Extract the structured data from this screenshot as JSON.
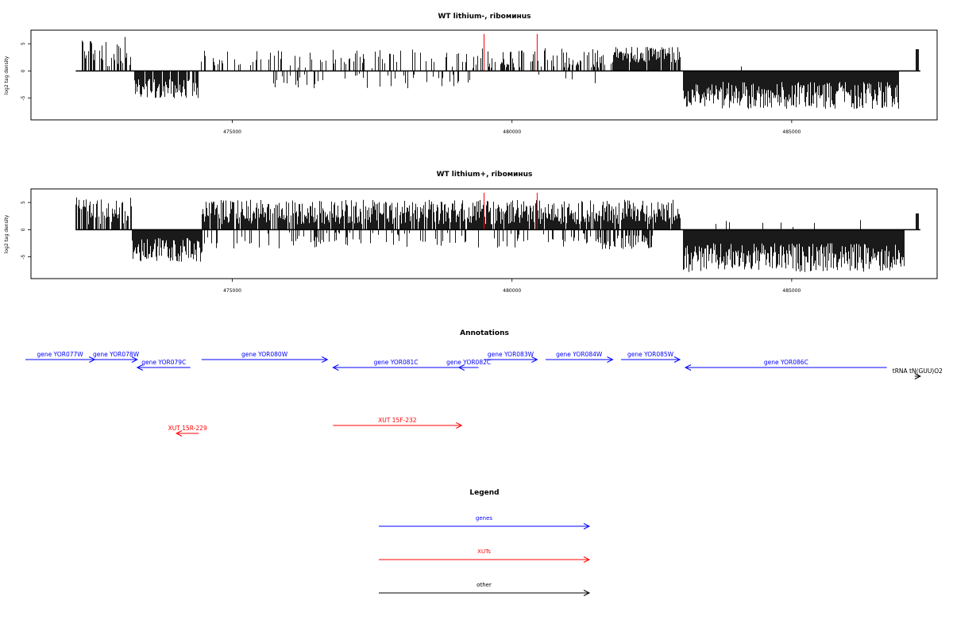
{
  "chart_data": [
    {
      "type": "bar",
      "title": "WT lithium-, riboминus",
      "ylabel": "log2 tag density",
      "xlim": [
        471400,
        487600
      ],
      "ylim": [
        -9,
        7.5
      ],
      "x_ticks": [
        475000,
        480000,
        485000
      ],
      "x_tick_labels": [
        "475000",
        "480000",
        "485000"
      ],
      "y_ticks": [
        5,
        0,
        -5
      ],
      "y_tick_labels": [
        "5",
        "0",
        "-5"
      ],
      "baseline": [
        472200,
        487300
      ],
      "bar_color": "#000000",
      "highlight_color": "#ff0000",
      "highlights": [
        {
          "x": 479500,
          "value": 6.8
        },
        {
          "x": 480450,
          "value": 6.8
        }
      ],
      "regions": [
        {
          "from": 472300,
          "to": 473200,
          "sign": 1,
          "lo": 0.8,
          "hi": 6.5,
          "density": 0.5
        },
        {
          "from": 473250,
          "to": 474400,
          "sign": -1,
          "lo": 1.5,
          "hi": 5.0,
          "density": 0.85
        },
        {
          "from": 474400,
          "to": 479300,
          "sign": 1,
          "lo": 0.5,
          "hi": 4.0,
          "density": 0.22
        },
        {
          "from": 475500,
          "to": 479300,
          "sign": -1,
          "lo": 0.5,
          "hi": 3.2,
          "density": 0.15
        },
        {
          "from": 479300,
          "to": 481800,
          "sign": 1,
          "lo": 0.5,
          "hi": 4.2,
          "density": 0.4
        },
        {
          "from": 480300,
          "to": 481500,
          "sign": -1,
          "lo": 0.3,
          "hi": 2.5,
          "density": 0.05
        },
        {
          "from": 481800,
          "to": 483000,
          "sign": 1,
          "lo": 1.5,
          "hi": 4.5,
          "density": 0.95
        },
        {
          "from": 483050,
          "to": 486900,
          "sign": -1,
          "lo": 2.0,
          "hi": 7.0,
          "density": 1.0
        },
        {
          "from": 483300,
          "to": 486000,
          "sign": 1,
          "lo": 0.3,
          "hi": 1.0,
          "density": 0.01
        },
        {
          "from": 487220,
          "to": 487260,
          "sign": 1,
          "lo": 4.0,
          "hi": 4.0,
          "density": 1.0
        }
      ]
    },
    {
      "type": "bar",
      "title": "WT lithium+, riboминus",
      "ylabel": "log2 tag density",
      "xlim": [
        471400,
        487600
      ],
      "ylim": [
        -9,
        7.5
      ],
      "x_ticks": [
        475000,
        480000,
        485000
      ],
      "x_tick_labels": [
        "475000",
        "480000",
        "485000"
      ],
      "y_ticks": [
        5,
        0,
        -5
      ],
      "y_tick_labels": [
        "5",
        "0",
        "-5"
      ],
      "baseline": [
        472200,
        487300
      ],
      "bar_color": "#000000",
      "highlight_color": "#ff0000",
      "highlights": [
        {
          "x": 479500,
          "value": 6.8
        },
        {
          "x": 480450,
          "value": 6.8
        }
      ],
      "regions": [
        {
          "from": 472200,
          "to": 473200,
          "sign": 1,
          "lo": 0.8,
          "hi": 6.0,
          "density": 0.7
        },
        {
          "from": 473200,
          "to": 474450,
          "sign": -1,
          "lo": 1.5,
          "hi": 6.0,
          "density": 1.0
        },
        {
          "from": 474450,
          "to": 483000,
          "sign": 1,
          "lo": 1.0,
          "hi": 5.5,
          "density": 0.9
        },
        {
          "from": 474450,
          "to": 481500,
          "sign": -1,
          "lo": 0.5,
          "hi": 3.5,
          "density": 0.2
        },
        {
          "from": 481500,
          "to": 482500,
          "sign": -1,
          "lo": 1.0,
          "hi": 3.8,
          "density": 0.6
        },
        {
          "from": 483050,
          "to": 487000,
          "sign": -1,
          "lo": 2.5,
          "hi": 7.8,
          "density": 1.0
        },
        {
          "from": 483500,
          "to": 486500,
          "sign": 1,
          "lo": 0.3,
          "hi": 1.8,
          "density": 0.03
        },
        {
          "from": 487220,
          "to": 487260,
          "sign": 1,
          "lo": 3.0,
          "hi": 3.0,
          "density": 1.0
        }
      ]
    }
  ],
  "annotations": {
    "title": "Annotations",
    "colors": {
      "gene": "#0000ff",
      "xut": "#ff0000",
      "other": "#000000"
    },
    "features": [
      {
        "label": "gene YOR077W",
        "kind": "gene",
        "start": 471300,
        "end": 472540,
        "strand": "+",
        "row": 0
      },
      {
        "label": "gene YOR078W",
        "kind": "gene",
        "start": 472540,
        "end": 473300,
        "strand": "+",
        "row": 0
      },
      {
        "label": "gene YOR079C",
        "kind": "gene",
        "start": 473300,
        "end": 474250,
        "strand": "-",
        "row": 1
      },
      {
        "label": "gene YOR080W",
        "kind": "gene",
        "start": 474450,
        "end": 476700,
        "strand": "+",
        "row": 0
      },
      {
        "label": "gene YOR081C",
        "kind": "gene",
        "start": 476800,
        "end": 479050,
        "strand": "-",
        "row": 1
      },
      {
        "label": "gene YOR082C",
        "kind": "gene",
        "start": 479050,
        "end": 479400,
        "strand": "-",
        "row": 1
      },
      {
        "label": "gene YOR083W",
        "kind": "gene",
        "start": 479500,
        "end": 480450,
        "strand": "+",
        "row": 0
      },
      {
        "label": "gene YOR084W",
        "kind": "gene",
        "start": 480600,
        "end": 481800,
        "strand": "+",
        "row": 0
      },
      {
        "label": "gene YOR085W",
        "kind": "gene",
        "start": 481950,
        "end": 483000,
        "strand": "+",
        "row": 0
      },
      {
        "label": "gene YOR086C",
        "kind": "gene",
        "start": 483100,
        "end": 486700,
        "strand": "-",
        "row": 1
      },
      {
        "label": "tRNA tN(GUU)O2",
        "kind": "other",
        "start": 487200,
        "end": 487300,
        "strand": "+",
        "row": 2
      },
      {
        "label": "XUT 15R-229",
        "kind": "xut",
        "start": 474000,
        "end": 474400,
        "strand": "-",
        "row": 4
      },
      {
        "label": "XUT 15F-232",
        "kind": "xut",
        "start": 476800,
        "end": 479100,
        "strand": "+",
        "row": 3
      }
    ]
  },
  "legend": {
    "title": "Legend",
    "items": [
      {
        "label": "genes",
        "color": "#0000ff"
      },
      {
        "label": "XUTs",
        "color": "#ff0000"
      },
      {
        "label": "other",
        "color": "#000000"
      }
    ]
  }
}
